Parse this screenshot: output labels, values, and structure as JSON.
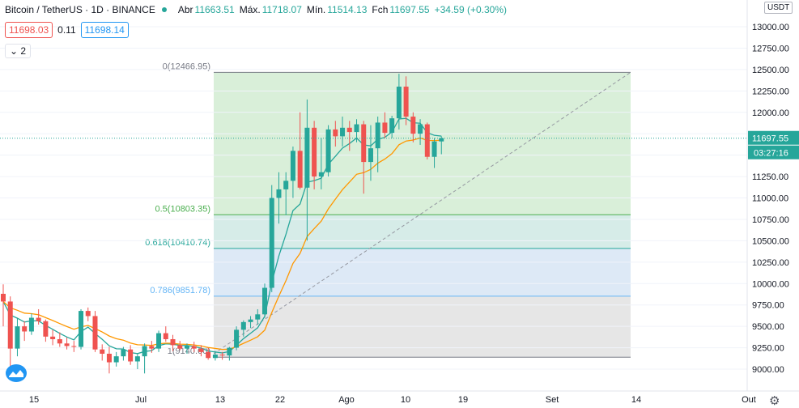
{
  "header": {
    "title": "Bitcoin / TetherUS · 1D · BINANCE",
    "open_label": "Abr",
    "open_value": "11663.51",
    "high_label": "Máx.",
    "high_value": "11718.07",
    "low_label": "Mín.",
    "low_value": "11514.13",
    "close_label": "Fch",
    "close_value": "11697.55",
    "change": "+34.59 (+0.30%)"
  },
  "trade": {
    "sell": "11698.03",
    "spread": "0.11",
    "buy": "11698.14"
  },
  "indicators_toggle": "2",
  "currency_button": "USDT",
  "colors": {
    "up": "#26a69a",
    "down": "#ef5350",
    "ema_fast": "#26a69a",
    "ema_slow": "#ff9800",
    "price_line": "#26a69a"
  },
  "chart_data": {
    "type": "candlestick",
    "yaxis_ticks": [
      "9000.00",
      "9250.00",
      "9500.00",
      "9750.00",
      "10000.00",
      "10250.00",
      "10500.00",
      "10750.00",
      "11000.00",
      "11250.00",
      "11500.00",
      "11750.00",
      "12000.00",
      "12250.00",
      "12500.00",
      "12750.00",
      "13000.00"
    ],
    "ylim": [
      8900,
      13190
    ],
    "xaxis_ticks": [
      "15",
      "Jul",
      "13",
      "22",
      "Ago",
      "10",
      "19",
      "Set",
      "14",
      "Out"
    ],
    "last_price_label": "11697.55",
    "countdown_label": "03:27:16",
    "fibonacci": [
      {
        "label": "0(12466.95)",
        "value": 12466.95,
        "color": "#787b86",
        "fill": "#d9efd9"
      },
      {
        "label": "0.5(10803.35)",
        "value": 10803.35,
        "color": "#4caf50",
        "fill": "#d9efd9"
      },
      {
        "label": "0.618(10410.74)",
        "value": 10410.74,
        "color": "#26a69a",
        "fill": "#d6ece8"
      },
      {
        "label": "0.786(9851.78)",
        "value": 9851.78,
        "color": "#64b5f6",
        "fill": "#dde9f6"
      },
      {
        "label": "1(9140.00)",
        "value": 9140.0,
        "color": "#787b86",
        "fill": "#e6e6e6"
      }
    ],
    "candles": [
      [
        9880,
        9990,
        9500,
        9790
      ],
      [
        9790,
        9850,
        8950,
        9240
      ],
      [
        9240,
        9600,
        9150,
        9500
      ],
      [
        9500,
        9560,
        9330,
        9440
      ],
      [
        9440,
        9650,
        9400,
        9600
      ],
      [
        9600,
        9700,
        9520,
        9560
      ],
      [
        9560,
        9580,
        9320,
        9380
      ],
      [
        9380,
        9460,
        9280,
        9350
      ],
      [
        9350,
        9430,
        9260,
        9300
      ],
      [
        9300,
        9370,
        9230,
        9270
      ],
      [
        9270,
        9330,
        9200,
        9260
      ],
      [
        9260,
        9700,
        9230,
        9680
      ],
      [
        9680,
        9720,
        9560,
        9620
      ],
      [
        9620,
        9680,
        9200,
        9230
      ],
      [
        9230,
        9290,
        9100,
        9180
      ],
      [
        9180,
        9260,
        8950,
        9080
      ],
      [
        9080,
        9200,
        9030,
        9150
      ],
      [
        9150,
        9260,
        9100,
        9230
      ],
      [
        9230,
        9280,
        9050,
        9090
      ],
      [
        9090,
        9180,
        9000,
        9150
      ],
      [
        9150,
        9300,
        8950,
        9270
      ],
      [
        9270,
        9330,
        9190,
        9240
      ],
      [
        9240,
        9450,
        9200,
        9420
      ],
      [
        9420,
        9500,
        9320,
        9350
      ],
      [
        9350,
        9400,
        9210,
        9280
      ],
      [
        9280,
        9330,
        9220,
        9240
      ],
      [
        9240,
        9300,
        9180,
        9270
      ],
      [
        9270,
        9320,
        9200,
        9240
      ],
      [
        9240,
        9280,
        9150,
        9200
      ],
      [
        9200,
        9250,
        9110,
        9130
      ],
      [
        9130,
        9210,
        9100,
        9170
      ],
      [
        9170,
        9200,
        9110,
        9160
      ],
      [
        9160,
        9260,
        9100,
        9250
      ],
      [
        9250,
        9500,
        9220,
        9460
      ],
      [
        9460,
        9570,
        9380,
        9550
      ],
      [
        9550,
        9620,
        9480,
        9580
      ],
      [
        9580,
        9700,
        9520,
        9640
      ],
      [
        9640,
        10000,
        9600,
        9950
      ],
      [
        9950,
        11150,
        9900,
        11000
      ],
      [
        11000,
        11300,
        10700,
        11100
      ],
      [
        11100,
        11300,
        10800,
        11200
      ],
      [
        11200,
        11600,
        11000,
        11550
      ],
      [
        11550,
        12000,
        11100,
        11120
      ],
      [
        11120,
        12150,
        10500,
        11820
      ],
      [
        11820,
        11900,
        11100,
        11250
      ],
      [
        11250,
        11700,
        11100,
        11300
      ],
      [
        11300,
        11850,
        11250,
        11800
      ],
      [
        11800,
        11900,
        11600,
        11720
      ],
      [
        11720,
        11950,
        11600,
        11820
      ],
      [
        11820,
        11900,
        11550,
        11770
      ],
      [
        11770,
        11920,
        11650,
        11860
      ],
      [
        11860,
        11900,
        11050,
        11420
      ],
      [
        11420,
        11850,
        11200,
        11580
      ],
      [
        11580,
        11950,
        11300,
        11880
      ],
      [
        11880,
        12000,
        11700,
        11760
      ],
      [
        11760,
        11960,
        11700,
        11930
      ],
      [
        11930,
        12450,
        11800,
        12300
      ],
      [
        12300,
        12420,
        11850,
        11950
      ],
      [
        11950,
        12000,
        11650,
        11750
      ],
      [
        11750,
        11920,
        11620,
        11860
      ],
      [
        11860,
        11880,
        11450,
        11480
      ],
      [
        11480,
        11700,
        11350,
        11660
      ],
      [
        11660,
        11720,
        11510,
        11697.55
      ]
    ]
  }
}
